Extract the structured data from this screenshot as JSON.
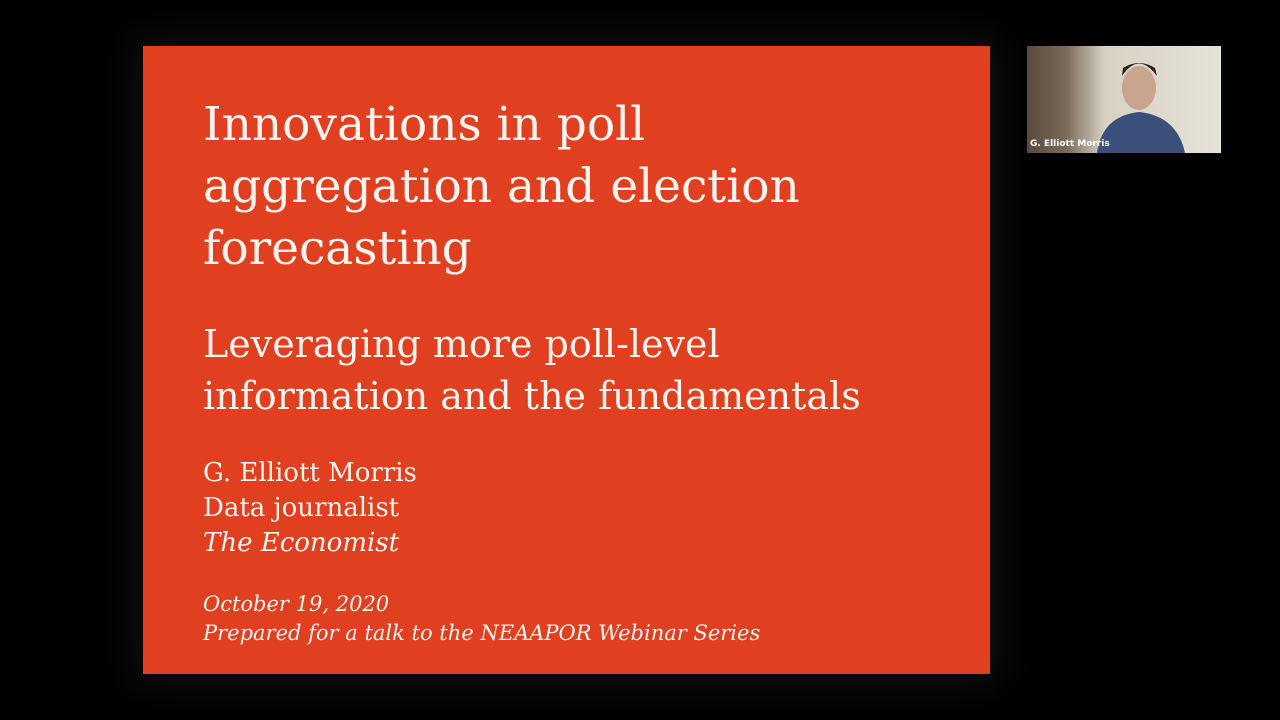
{
  "slide": {
    "title": [
      "Innovations in poll",
      "aggregation and election",
      "forecasting"
    ],
    "subtitle": [
      "Leveraging more poll-level",
      "information and the fundamentals"
    ],
    "author": "G. Elliott Morris",
    "role": "Data journalist",
    "organization": "The Economist",
    "date": "October 19, 2020",
    "note": "Prepared for a talk to the NEAAPOR Webinar Series"
  },
  "video": {
    "participant": "G. Elliott Morris"
  }
}
